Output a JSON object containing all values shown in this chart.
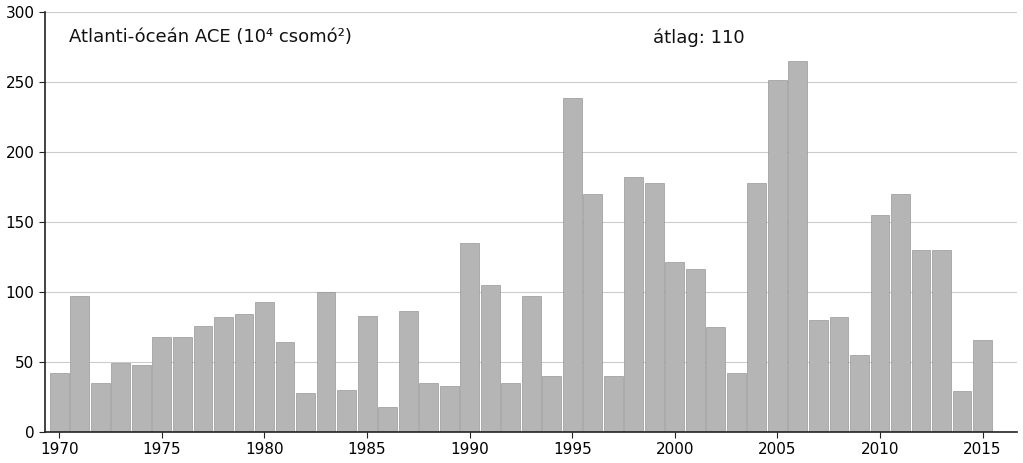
{
  "years": [
    1970,
    1971,
    1972,
    1973,
    1974,
    1975,
    1976,
    1977,
    1978,
    1979,
    1980,
    1981,
    1982,
    1983,
    1984,
    1985,
    1986,
    1987,
    1988,
    1989,
    1990,
    1991,
    1992,
    1993,
    1994,
    1995,
    1996,
    1997,
    1998,
    1999,
    2000,
    2001,
    2002,
    2003,
    2004,
    2005,
    2006,
    2007,
    2008,
    2009,
    2010,
    2011,
    2012,
    2013,
    2014,
    2015
  ],
  "values": [
    42,
    97,
    35,
    49,
    48,
    68,
    68,
    76,
    82,
    84,
    93,
    64,
    28,
    100,
    30,
    83,
    18,
    86,
    35,
    33,
    135,
    105,
    35,
    97,
    40,
    238,
    170,
    40,
    182,
    178,
    121,
    116,
    75,
    42,
    178,
    251,
    265,
    80,
    82,
    55,
    155,
    170,
    130,
    130,
    29,
    66
  ],
  "bar_color": "#b5b5b5",
  "bar_edge_color": "#888888",
  "avg_value": 110,
  "title": "Atlanti-óceán ACE (10⁴ csomó²)",
  "avg_label": "átlag: 110",
  "ylim": [
    0,
    300
  ],
  "yticks": [
    0,
    50,
    100,
    150,
    200,
    250,
    300
  ],
  "xlim_start": 1969.3,
  "xlim_end": 2016.7,
  "xtick_years": [
    1970,
    1975,
    1980,
    1985,
    1990,
    1995,
    2000,
    2005,
    2010,
    2015
  ],
  "background_color": "#ffffff",
  "title_fontsize": 13,
  "avg_label_fontsize": 13,
  "tick_fontsize": 11,
  "bar_width": 0.92
}
